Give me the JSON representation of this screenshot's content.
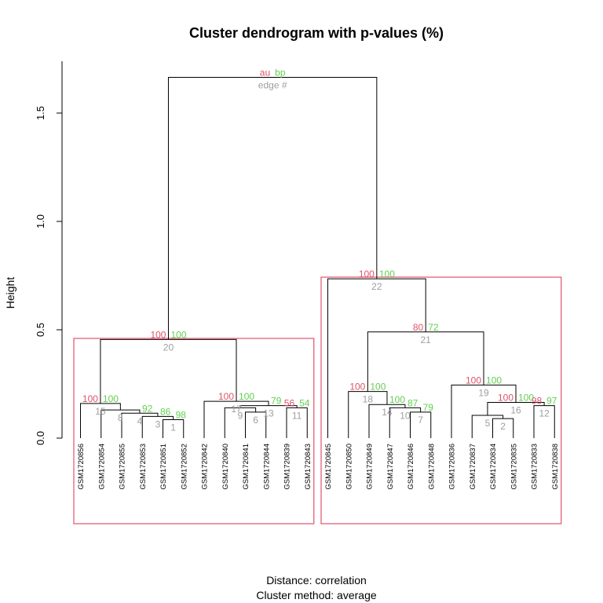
{
  "chart_data": {
    "type": "dendrogram",
    "title": "Cluster dendrogram with p-values (%)",
    "ylabel": "Height",
    "xlabel_line1": "Distance:  correlation",
    "xlabel_line2": "Cluster method: average",
    "ylim": [
      0,
      1.7
    ],
    "yticks": [
      {
        "value": 0.0,
        "label": "0.0"
      },
      {
        "value": 0.5,
        "label": "0.5"
      },
      {
        "value": 1.0,
        "label": "1.0"
      },
      {
        "value": 1.5,
        "label": "1.5"
      }
    ],
    "legend": {
      "au": "au",
      "bp": "bp",
      "edge": "edge #"
    },
    "colors": {
      "au": "#DF536B",
      "bp": "#61D04F",
      "edge": "#9E9E9E",
      "line": "#000000",
      "rect": "#DF536B"
    },
    "leaves": [
      "GSM1720856",
      "GSM1720854",
      "GSM1720855",
      "GSM1720853",
      "GSM1720851",
      "GSM1720852",
      "GSM1720842",
      "GSM1720840",
      "GSM1720841",
      "GSM1720844",
      "GSM1720839",
      "GSM1720843",
      "GSM1720845",
      "GSM1720850",
      "GSM1720849",
      "GSM1720847",
      "GSM1720846",
      "GSM1720848",
      "GSM1720836",
      "GSM1720837",
      "GSM1720834",
      "GSM1720835",
      "GSM1720833",
      "GSM1720838"
    ],
    "merges": [
      {
        "edge": 1,
        "left": "L5",
        "right": "L6",
        "height": 0.085,
        "au": "",
        "bp": "98"
      },
      {
        "edge": 2,
        "left": "L21",
        "right": "L22",
        "height": 0.09,
        "au": "",
        "bp": ""
      },
      {
        "edge": 3,
        "left": "L4",
        "right": 1,
        "height": 0.1,
        "au": "",
        "bp": "86"
      },
      {
        "edge": 4,
        "left": "L3",
        "right": 3,
        "height": 0.115,
        "au": "",
        "bp": "92"
      },
      {
        "edge": 5,
        "left": "L20",
        "right": 2,
        "height": 0.105,
        "au": "",
        "bp": ""
      },
      {
        "edge": 6,
        "left": "L9",
        "right": "L10",
        "height": 0.12,
        "au": "",
        "bp": ""
      },
      {
        "edge": 7,
        "left": "L17",
        "right": "L18",
        "height": 0.12,
        "au": "",
        "bp": "79"
      },
      {
        "edge": 8,
        "left": "L2",
        "right": 4,
        "height": 0.13,
        "au": "",
        "bp": ""
      },
      {
        "edge": 9,
        "left": "L8",
        "right": 6,
        "height": 0.14,
        "au": "",
        "bp": ""
      },
      {
        "edge": 10,
        "left": "L16",
        "right": 7,
        "height": 0.14,
        "au": "",
        "bp": "87"
      },
      {
        "edge": 11,
        "left": "L11",
        "right": "L12",
        "height": 0.14,
        "au": "56",
        "bp": "54"
      },
      {
        "edge": 12,
        "left": "L23",
        "right": "L24",
        "height": 0.15,
        "au": "98",
        "bp": "97"
      },
      {
        "edge": 13,
        "left": 9,
        "right": 11,
        "height": 0.15,
        "au": "",
        "bp": "79"
      },
      {
        "edge": 14,
        "left": "L15",
        "right": 10,
        "height": 0.155,
        "au": "",
        "bp": "100"
      },
      {
        "edge": 15,
        "left": "L1",
        "right": 8,
        "height": 0.16,
        "au": "100",
        "bp": "100"
      },
      {
        "edge": 16,
        "left": 5,
        "right": 12,
        "height": 0.165,
        "au": "100",
        "bp": "100"
      },
      {
        "edge": 17,
        "left": "L7",
        "right": 13,
        "height": 0.17,
        "au": "100",
        "bp": "100"
      },
      {
        "edge": 18,
        "left": "L14",
        "right": 14,
        "height": 0.215,
        "au": "100",
        "bp": "100"
      },
      {
        "edge": 19,
        "left": "L19",
        "right": 16,
        "height": 0.245,
        "au": "100",
        "bp": "100"
      },
      {
        "edge": 20,
        "left": 15,
        "right": 17,
        "height": 0.455,
        "au": "100",
        "bp": "100"
      },
      {
        "edge": 21,
        "left": 18,
        "right": 19,
        "height": 0.49,
        "au": "80",
        "bp": "72"
      },
      {
        "edge": 22,
        "left": "L13",
        "right": 21,
        "height": 0.735,
        "au": "100",
        "bp": "100"
      },
      {
        "edge": 23,
        "left": 20,
        "right": 22,
        "height": 1.665,
        "au": "au",
        "bp": "bp"
      }
    ],
    "highlight_clusters": [
      {
        "from_leaf": 1,
        "to_leaf": 12
      },
      {
        "from_leaf": 13,
        "to_leaf": 24
      }
    ]
  }
}
